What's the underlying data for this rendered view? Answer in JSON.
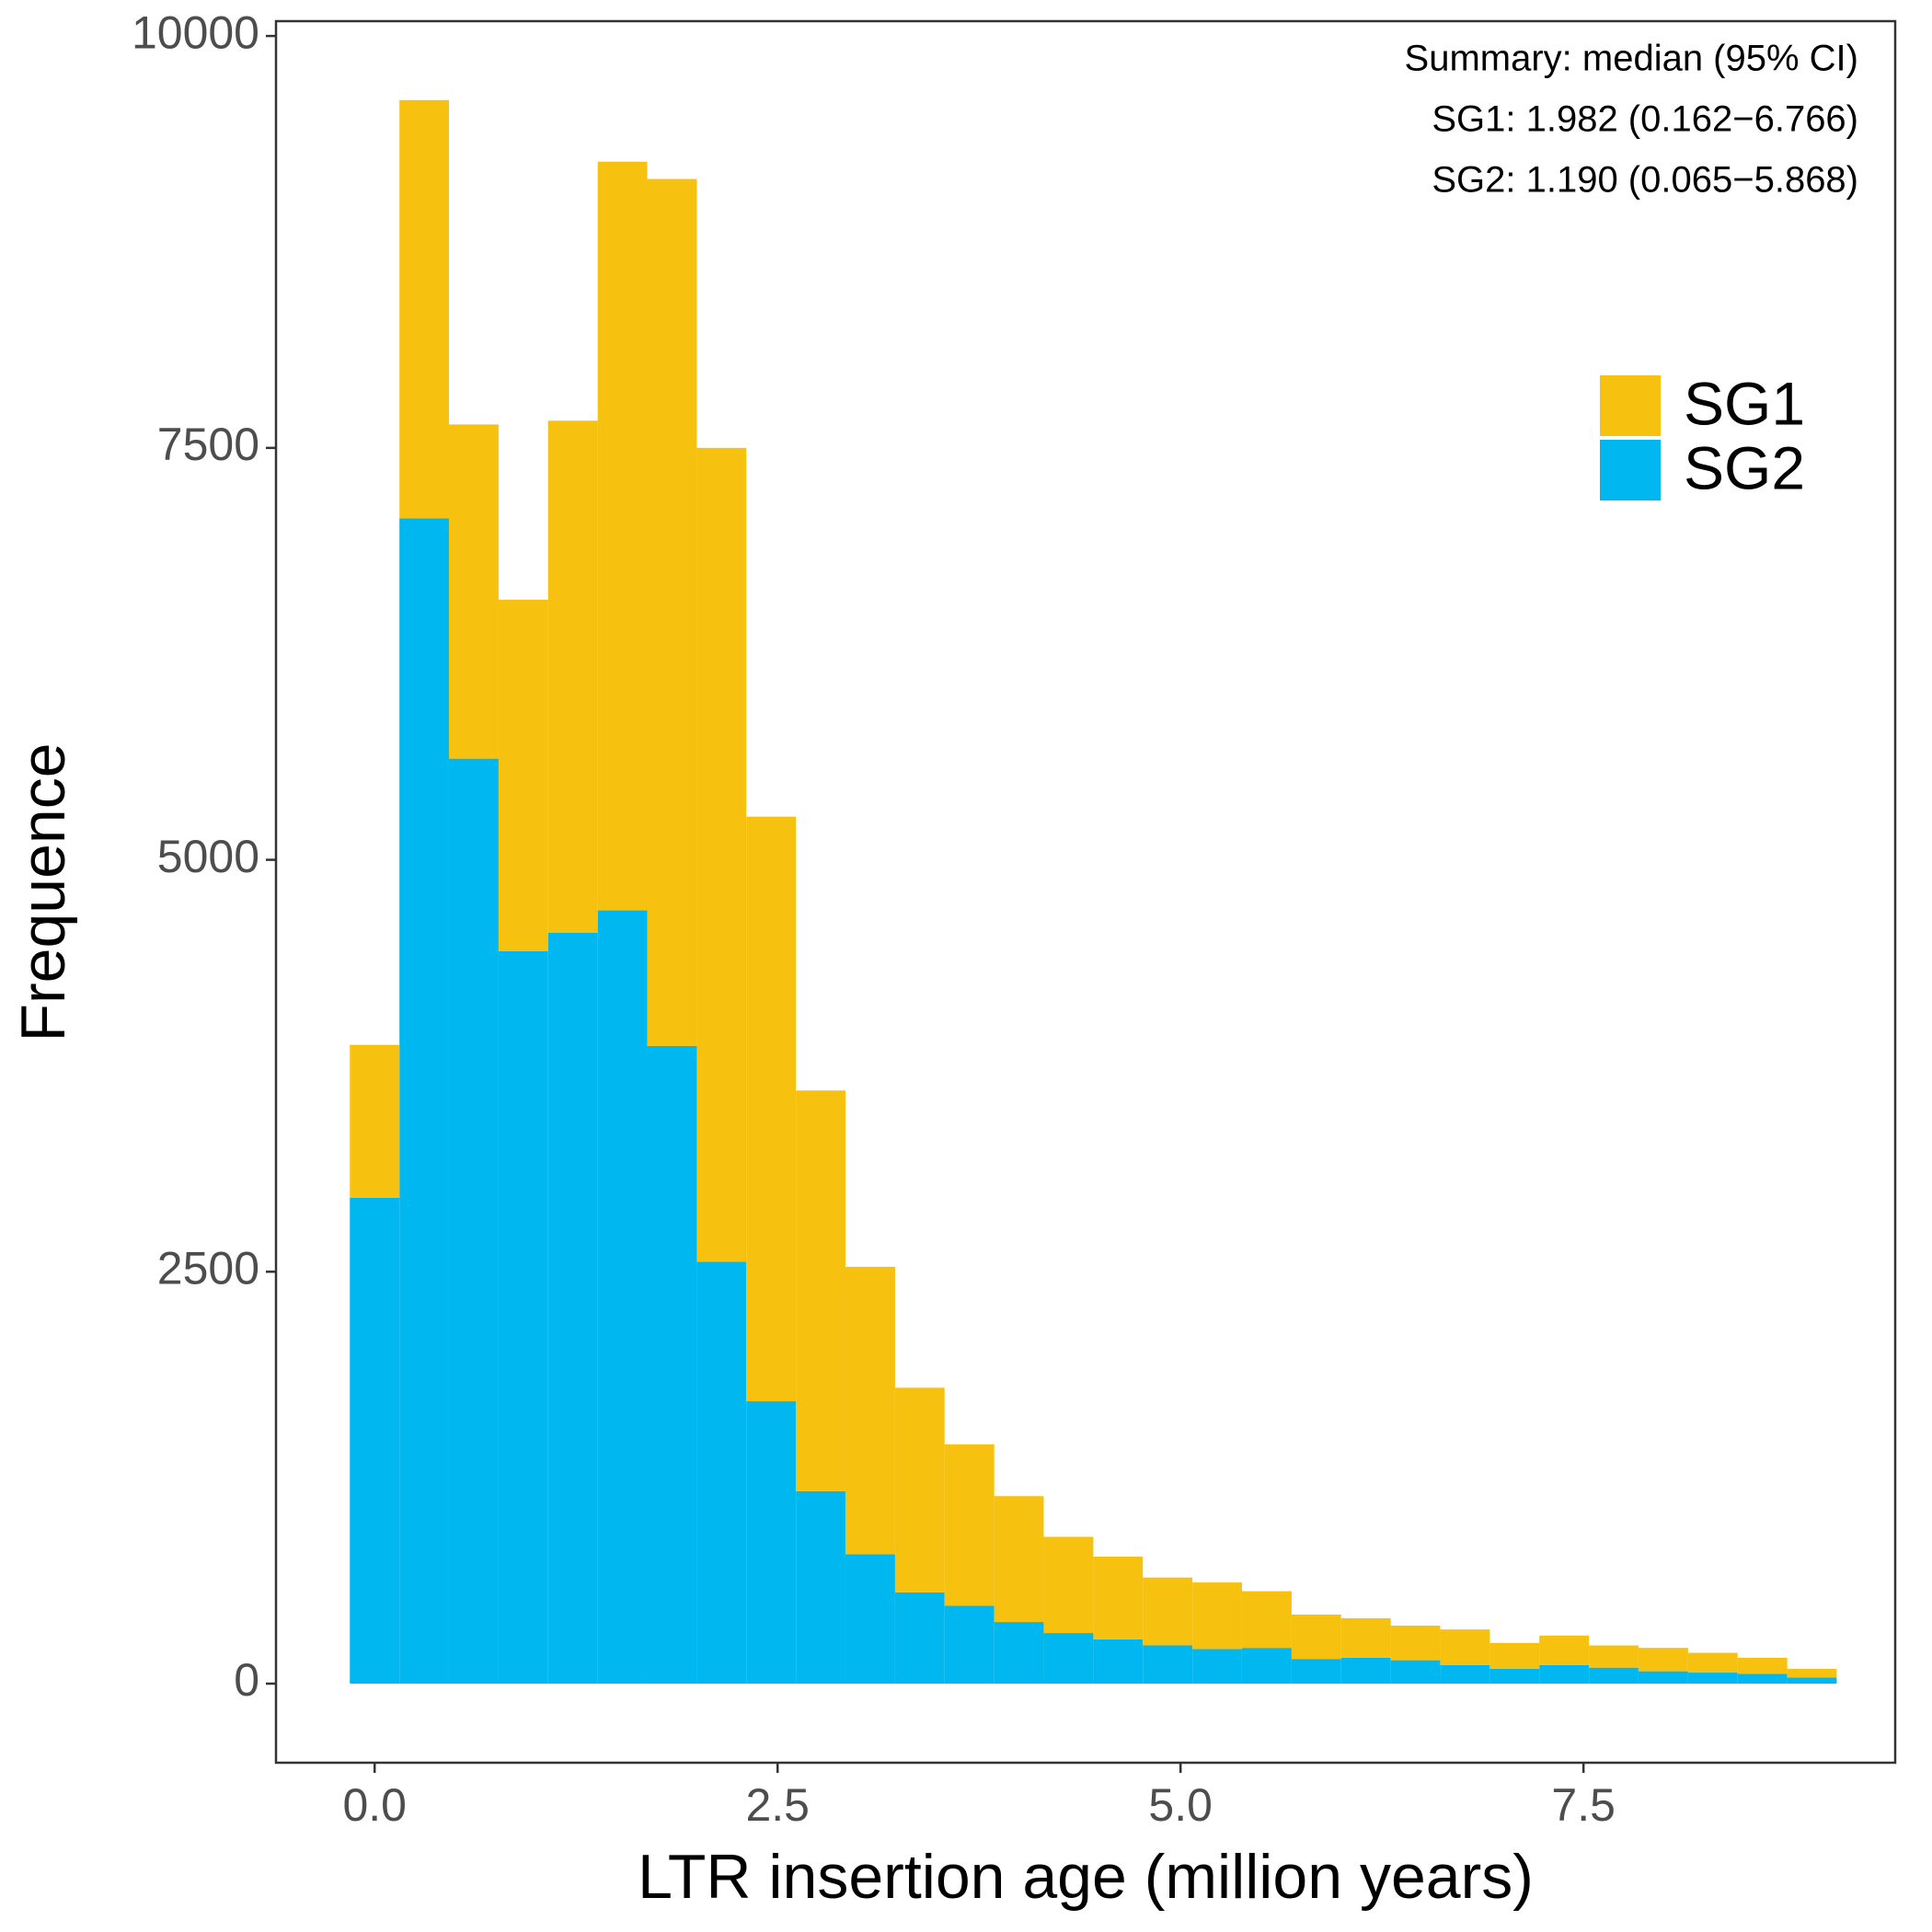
{
  "chart_data": {
    "type": "histogram",
    "x_label": "LTR insertion age (million years)",
    "y_label": "Frequence",
    "annotations": [
      "Summary: median (95% CI)",
      "SG1: 1.982 (0.162−6.766)",
      "SG2: 1.190 (0.065−5.868)"
    ],
    "bins": [
      -0.154,
      0.154,
      0.461,
      0.769,
      1.076,
      1.384,
      1.691,
      1.999,
      2.306,
      2.614,
      2.921,
      3.229,
      3.536,
      3.844,
      4.151,
      4.459,
      4.766,
      5.074,
      5.381,
      5.689,
      5.996,
      6.304,
      6.611,
      6.919,
      7.226,
      7.534,
      7.841,
      8.149,
      8.456,
      8.764,
      9.071
    ],
    "stacked": true,
    "series": [
      {
        "name": "SG1",
        "color": "#f7c10f",
        "values": [
          928,
          2538,
          2028,
          2133,
          3107,
          4544,
          5262,
          4940,
          3548,
          2432,
          1744,
          1242,
          980,
          764,
          584,
          502,
          412,
          404,
          344,
          269,
          240,
          210,
          217,
          157,
          180,
          135,
          142,
          120,
          97,
          53
        ]
      },
      {
        "name": "SG2",
        "color": "#00b8ef",
        "values": [
          2949,
          7073,
          5614,
          4446,
          4558,
          4693,
          3870,
          2560,
          1714,
          1168,
          786,
          554,
          472,
          374,
          307,
          269,
          232,
          210,
          217,
          150,
          157,
          142,
          112,
          90,
          112,
          97,
          75,
          67,
          60,
          37
        ]
      }
    ],
    "xlim": [
      -0.612,
      9.434
    ],
    "ylim": [
      -480,
      10090
    ],
    "xticks": [
      {
        "value": 0,
        "label": "0.0"
      },
      2.5,
      {
        "value": 5,
        "label": "5.0"
      },
      7.5
    ],
    "yticks": [
      0,
      2500,
      5000,
      7500,
      10000
    ],
    "grid": false,
    "legend_position": "top-right"
  }
}
